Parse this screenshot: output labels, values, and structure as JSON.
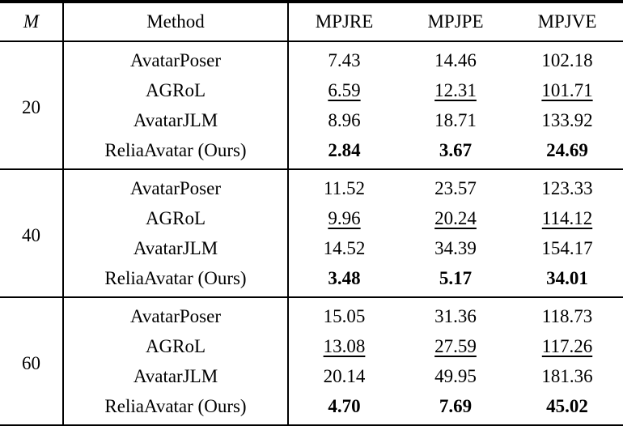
{
  "page": {
    "background": "#ffffff",
    "text_color": "#000000",
    "rule_color": "#000000"
  },
  "table": {
    "header": {
      "m": "M",
      "method": "Method",
      "mpjre": "MPJRE",
      "mpjpe": "MPJPE",
      "mpjve": "MPJVE"
    },
    "groups": [
      {
        "m": "20",
        "rows": [
          {
            "method": "AvatarPoser",
            "mpjre": "7.43",
            "mpjpe": "14.46",
            "mpjve": "102.18",
            "emphasis": "none"
          },
          {
            "method": "AGRoL",
            "mpjre": "6.59",
            "mpjpe": "12.31",
            "mpjve": "101.71",
            "emphasis": "underline"
          },
          {
            "method": "AvatarJLM",
            "mpjre": "8.96",
            "mpjpe": "18.71",
            "mpjve": "133.92",
            "emphasis": "none"
          },
          {
            "method": "ReliaAvatar (Ours)",
            "mpjre": "2.84",
            "mpjpe": "3.67",
            "mpjve": "24.69",
            "emphasis": "bold"
          }
        ]
      },
      {
        "m": "40",
        "rows": [
          {
            "method": "AvatarPoser",
            "mpjre": "11.52",
            "mpjpe": "23.57",
            "mpjve": "123.33",
            "emphasis": "none"
          },
          {
            "method": "AGRoL",
            "mpjre": "9.96",
            "mpjpe": "20.24",
            "mpjve": "114.12",
            "emphasis": "underline"
          },
          {
            "method": "AvatarJLM",
            "mpjre": "14.52",
            "mpjpe": "34.39",
            "mpjve": "154.17",
            "emphasis": "none"
          },
          {
            "method": "ReliaAvatar (Ours)",
            "mpjre": "3.48",
            "mpjpe": "5.17",
            "mpjve": "34.01",
            "emphasis": "bold"
          }
        ]
      },
      {
        "m": "60",
        "rows": [
          {
            "method": "AvatarPoser",
            "mpjre": "15.05",
            "mpjpe": "31.36",
            "mpjve": "118.73",
            "emphasis": "none"
          },
          {
            "method": "AGRoL",
            "mpjre": "13.08",
            "mpjpe": "27.59",
            "mpjve": "117.26",
            "emphasis": "underline"
          },
          {
            "method": "AvatarJLM",
            "mpjre": "20.14",
            "mpjpe": "49.95",
            "mpjve": "181.36",
            "emphasis": "none"
          },
          {
            "method": "ReliaAvatar (Ours)",
            "mpjre": "4.70",
            "mpjpe": "7.69",
            "mpjve": "45.02",
            "emphasis": "bold"
          }
        ]
      }
    ]
  }
}
